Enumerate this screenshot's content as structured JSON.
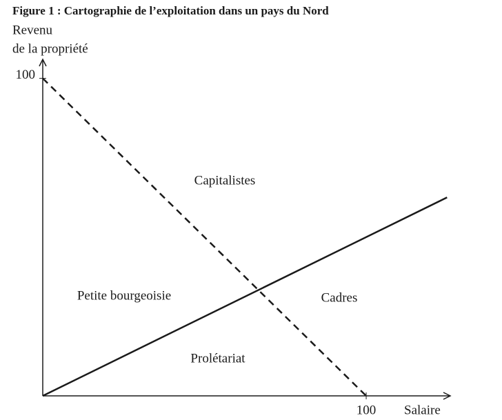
{
  "chart_data": {
    "type": "line",
    "title": "Figure 1 : Cartographie de l’exploitation dans un pays du Nord",
    "ylabel": [
      "Revenu",
      "de la propriété"
    ],
    "xlabel": "Salaire",
    "xlim": [
      0,
      126
    ],
    "ylim": [
      0,
      106
    ],
    "xticks": [
      100
    ],
    "yticks": [
      100
    ],
    "series": [
      {
        "style": "dashed",
        "color": "#1a1a1a",
        "x": [
          0,
          100
        ],
        "values": [
          100,
          0
        ]
      },
      {
        "style": "solid",
        "color": "#1a1a1a",
        "x": [
          0,
          125
        ],
        "values": [
          0,
          62.5
        ]
      }
    ],
    "annotations": [
      "Capitalistes",
      "Petite bourgeoisie",
      "Cadres",
      "Prolétariat"
    ]
  }
}
